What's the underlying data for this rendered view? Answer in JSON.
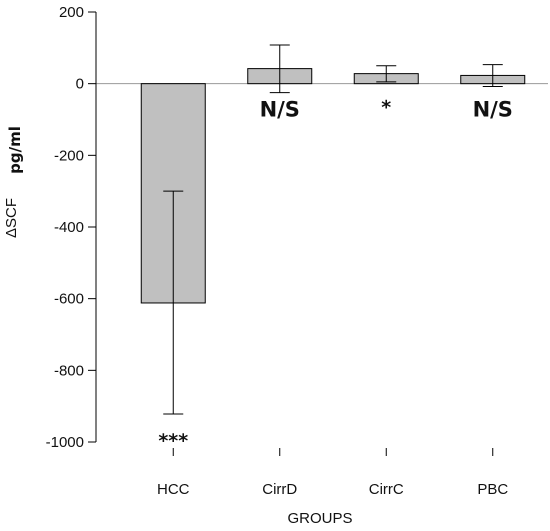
{
  "chart_data": {
    "type": "bar",
    "categories": [
      "HCC",
      "CirrD",
      "CirrC",
      "PBC"
    ],
    "values": [
      -612,
      42,
      28,
      23
    ],
    "errors": [
      {
        "low": -922,
        "high": -300
      },
      {
        "low": -25,
        "high": 108
      },
      {
        "low": 5,
        "high": 50
      },
      {
        "low": -8,
        "high": 53
      }
    ],
    "annotations": [
      "***",
      "N/S",
      "*",
      "N/S"
    ],
    "ylabel": "ΔSCF",
    "ylabel_unit": "pg/ml",
    "xlabel": "GROUPS",
    "ylim": [
      -1000,
      200
    ],
    "yticks": [
      200,
      0,
      -200,
      -400,
      -600,
      -800,
      -1000
    ],
    "grid": false,
    "bar_color": "#c0c0c0",
    "zero_line_color": "#9a9a9a"
  }
}
